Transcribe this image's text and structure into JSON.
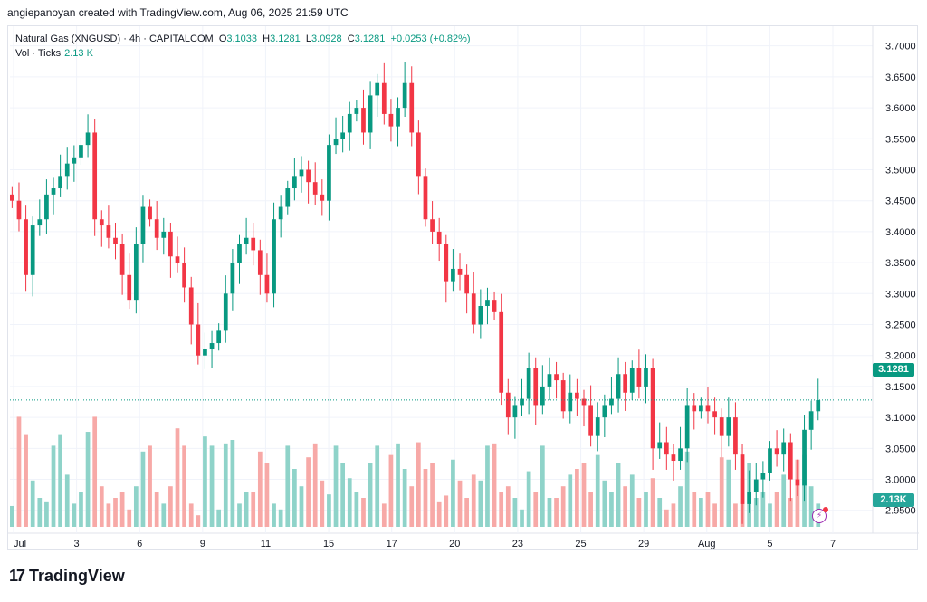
{
  "credit": "angiepanoyan created with TradingView.com, Aug 06, 2025 21:59 UTC",
  "legend": {
    "symbol": "Natural Gas (XNGUSD)",
    "interval": "4h",
    "source": "CAPITALCOM",
    "o_label": "O",
    "o_value": "3.1033",
    "h_label": "H",
    "h_value": "3.1281",
    "l_label": "L",
    "l_value": "3.0928",
    "c_label": "C",
    "c_value": "3.1281",
    "change": "+0.0253 (+0.82%)",
    "vol_label": "Vol · Ticks",
    "vol_value": "2.13 K"
  },
  "badges": {
    "price": "3.1281",
    "volume": "2.13K"
  },
  "brand": {
    "logo": "17",
    "name": "TradingView"
  },
  "colors": {
    "up": "#089981",
    "down": "#f23645",
    "vol_up": "#8fd3c9",
    "vol_down": "#f7a9a7"
  },
  "chart_data": {
    "type": "candlestick",
    "title": "Natural Gas (XNGUSD) · 4h · CAPITALCOM",
    "ylim": [
      2.935,
      3.72
    ],
    "y_ticks": [
      "3.7000",
      "3.6500",
      "3.6000",
      "3.5500",
      "3.5000",
      "3.4500",
      "3.4000",
      "3.3500",
      "3.3000",
      "3.2500",
      "3.2000",
      "3.1500",
      "3.1000",
      "3.0500",
      "3.0000",
      "2.9500"
    ],
    "x_tick_labels": [
      "Jul",
      "3",
      "6",
      "9",
      "11",
      "15",
      "17",
      "20",
      "23",
      "25",
      "29",
      "Aug",
      "5",
      "7"
    ],
    "last_price": 3.1281,
    "series": [
      {
        "name": "price",
        "close": [
          3.45,
          3.42,
          3.33,
          3.41,
          3.42,
          3.46,
          3.47,
          3.49,
          3.51,
          3.52,
          3.54,
          3.56,
          3.42,
          3.41,
          3.39,
          3.38,
          3.33,
          3.29,
          3.38,
          3.44,
          3.42,
          3.39,
          3.4,
          3.36,
          3.35,
          3.31,
          3.25,
          3.2,
          3.21,
          3.22,
          3.24,
          3.3,
          3.35,
          3.38,
          3.39,
          3.37,
          3.33,
          3.3,
          3.42,
          3.44,
          3.47,
          3.49,
          3.5,
          3.48,
          3.46,
          3.45,
          3.54,
          3.55,
          3.56,
          3.59,
          3.6,
          3.56,
          3.62,
          3.64,
          3.59,
          3.57,
          3.6,
          3.64,
          3.56,
          3.49,
          3.42,
          3.4,
          3.38,
          3.32,
          3.34,
          3.33,
          3.3,
          3.25,
          3.28,
          3.29,
          3.27,
          3.14,
          3.1,
          3.12,
          3.13,
          3.18,
          3.12,
          3.15,
          3.17,
          3.16,
          3.11,
          3.14,
          3.13,
          3.12,
          3.07,
          3.1,
          3.12,
          3.13,
          3.17,
          3.14,
          3.18,
          3.15,
          3.18,
          3.05,
          3.06,
          3.04,
          3.03,
          3.05,
          3.12,
          3.11,
          3.12,
          3.11,
          3.1,
          3.07,
          3.1,
          3.04,
          2.96,
          2.98,
          3.0,
          3.01,
          3.05,
          3.04,
          3.06,
          3.0,
          2.99,
          3.08,
          3.11,
          3.128
        ]
      },
      {
        "name": "volume",
        "values": [
          0.18,
          0.95,
          0.8,
          0.4,
          0.25,
          0.22,
          0.7,
          0.8,
          0.45,
          0.2,
          0.3,
          0.82,
          0.95,
          0.35,
          0.2,
          0.25,
          0.3,
          0.15,
          0.35,
          0.65,
          0.7,
          0.3,
          0.2,
          0.35,
          0.85,
          0.7,
          0.2,
          0.1,
          0.78,
          0.7,
          0.15,
          0.72,
          0.75,
          0.2,
          0.3,
          0.3,
          0.65,
          0.55,
          0.2,
          0.15,
          0.7,
          0.5,
          0.35,
          0.6,
          0.72,
          0.4,
          0.28,
          0.7,
          0.55,
          0.42,
          0.3,
          0.25,
          0.55,
          0.7,
          0.2,
          0.62,
          0.72,
          0.5,
          0.35,
          0.73,
          0.5,
          0.55,
          0.22,
          0.27,
          0.58,
          0.4,
          0.25,
          0.45,
          0.4,
          0.7,
          0.72,
          0.3,
          0.35,
          0.25,
          0.15,
          0.48,
          0.3,
          0.7,
          0.25,
          0.25,
          0.35,
          0.45,
          0.5,
          0.55,
          0.3,
          0.62,
          0.4,
          0.3,
          0.55,
          0.35,
          0.45,
          0.25,
          0.3,
          0.42,
          0.25,
          0.15,
          0.2,
          0.35,
          0.65,
          0.3,
          0.25,
          0.3,
          0.2,
          0.6,
          0.58,
          0.2,
          0.42,
          0.55,
          0.25,
          0.3,
          0.2,
          0.3,
          0.45,
          0.25,
          0.58,
          0.62,
          0.35,
          0.2
        ]
      }
    ]
  }
}
